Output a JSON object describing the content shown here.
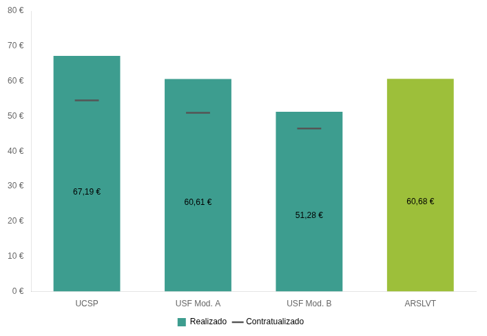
{
  "chart_data": {
    "type": "bar",
    "categories": [
      "UCSP",
      "USF Mod. A",
      "USF Mod. B",
      "ARSLVT"
    ],
    "series": [
      {
        "name": "Realizado",
        "type": "bar",
        "color": "#3d9d8f",
        "colors": [
          "#3d9d8f",
          "#3d9d8f",
          "#3d9d8f",
          "#9dbf3a"
        ],
        "values": [
          67.19,
          60.61,
          51.28,
          60.68
        ],
        "value_labels": [
          "67,19 €",
          "60,61 €",
          "51,28 €",
          "60,68 €"
        ]
      },
      {
        "name": "Contratualizado",
        "type": "scatter",
        "marker": "dash",
        "color": "#555555",
        "values": [
          54.5,
          51.0,
          46.5,
          null
        ]
      }
    ],
    "ylim": [
      0,
      80
    ],
    "yticks": [
      {
        "value": 0,
        "label": "0 €"
      },
      {
        "value": 10,
        "label": "10 €"
      },
      {
        "value": 20,
        "label": "20 €"
      },
      {
        "value": 30,
        "label": "30 €"
      },
      {
        "value": 40,
        "label": "40 €"
      },
      {
        "value": 50,
        "label": "50 €"
      },
      {
        "value": 60,
        "label": "60 €"
      },
      {
        "value": 70,
        "label": "70 €"
      },
      {
        "value": 80,
        "label": "80 €"
      }
    ],
    "grid": false,
    "legend": "bottom",
    "data_labels": true
  }
}
